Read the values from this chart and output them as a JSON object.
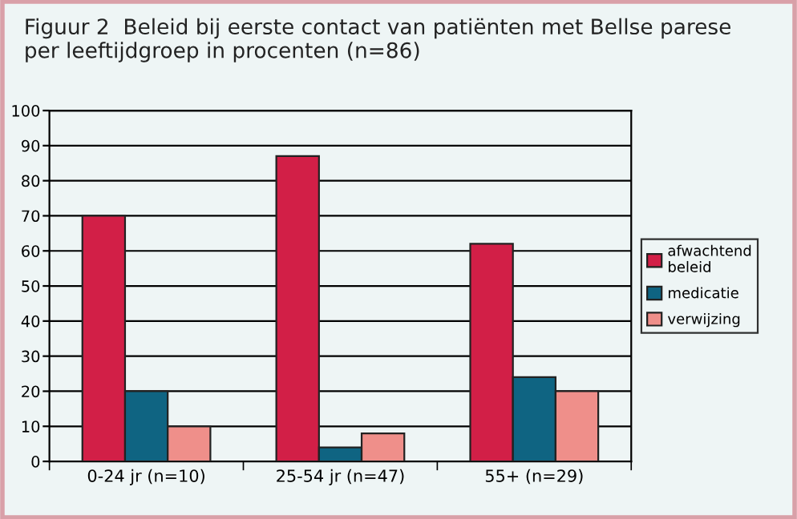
{
  "chart_data": {
    "type": "bar",
    "title": "Figuur 2  Beleid bij eerste contact van patiënten met Bellse parese\nper leeftijdgroep in procenten (n=86)",
    "categories": [
      "0-24 jr (n=10)",
      "25-54 jr (n=47)",
      "55+ (n=29)"
    ],
    "series": [
      {
        "name": "afwachtend\nbeleid",
        "color": "#d21f47",
        "values": [
          70,
          87,
          62
        ]
      },
      {
        "name": "medicatie",
        "color": "#0f6482",
        "values": [
          20,
          4,
          24
        ]
      },
      {
        "name": "verwijzing",
        "color": "#ef8f8a",
        "values": [
          10,
          8,
          20
        ]
      }
    ],
    "ylim": [
      0,
      100
    ],
    "yticks": [
      0,
      10,
      20,
      30,
      40,
      50,
      60,
      70,
      80,
      90,
      100
    ],
    "grid": "y",
    "legend": "right"
  }
}
